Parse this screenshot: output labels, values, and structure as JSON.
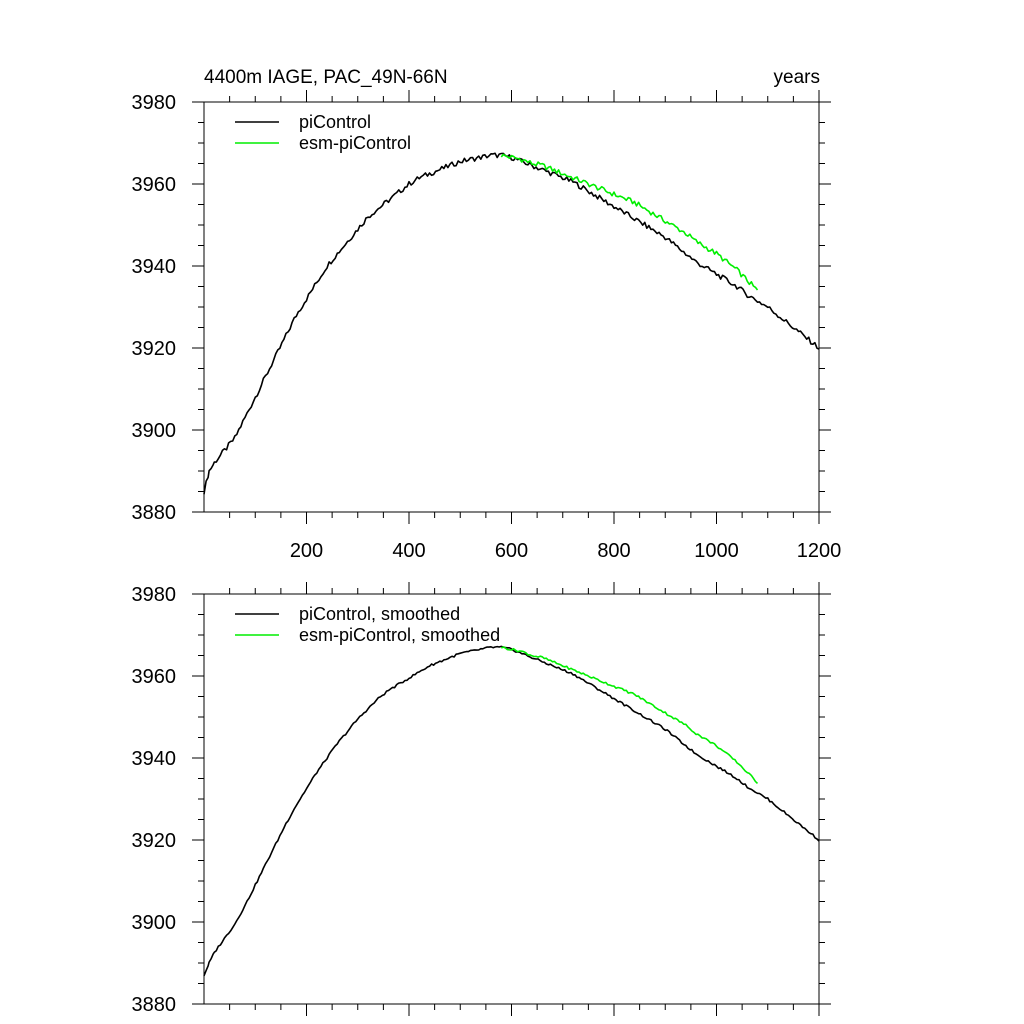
{
  "chart_data": [
    {
      "type": "line",
      "title": "4400m IAGE, PAC_49N-66N",
      "xlabel": "years",
      "ylabel": "",
      "xlim": [
        0,
        1200
      ],
      "ylim": [
        3880,
        3980
      ],
      "xticks": [
        200,
        400,
        600,
        800,
        1000,
        1200
      ],
      "xtick_labels": [
        "200",
        "400",
        "600",
        "800",
        "1000",
        "1200"
      ],
      "yticks": [
        3880,
        3900,
        3920,
        3940,
        3960,
        3980
      ],
      "ytick_labels": [
        "3880",
        "3900",
        "3920",
        "3940",
        "3960",
        "3980"
      ],
      "legend_position": "top-left",
      "series": [
        {
          "name": "piControl",
          "color": "#000000",
          "x": [
            0,
            10,
            20,
            40,
            60,
            80,
            100,
            120,
            140,
            160,
            180,
            200,
            220,
            240,
            260,
            280,
            300,
            320,
            340,
            360,
            380,
            400,
            420,
            440,
            460,
            480,
            500,
            520,
            540,
            560,
            580,
            600,
            620,
            640,
            660,
            680,
            700,
            720,
            740,
            760,
            780,
            800,
            820,
            840,
            860,
            880,
            900,
            920,
            940,
            960,
            980,
            1000,
            1020,
            1040,
            1060,
            1080,
            1100,
            1120,
            1140,
            1160,
            1180,
            1200
          ],
          "y": [
            3885,
            3890,
            3892,
            3895,
            3898,
            3903,
            3908,
            3913,
            3918,
            3923,
            3928,
            3932,
            3936,
            3940,
            3943,
            3946,
            3949,
            3952,
            3954,
            3956,
            3958,
            3960,
            3961.5,
            3962.5,
            3963.5,
            3964.5,
            3965.5,
            3966,
            3966.5,
            3967,
            3967,
            3966.5,
            3965.5,
            3964.5,
            3963.5,
            3962.5,
            3961.5,
            3960.5,
            3959,
            3957.5,
            3956,
            3954.5,
            3953,
            3951.5,
            3950,
            3948.5,
            3947,
            3945,
            3943,
            3941,
            3939.5,
            3938,
            3936.5,
            3935,
            3933,
            3931.5,
            3930,
            3928,
            3926,
            3924,
            3922,
            3920
          ]
        },
        {
          "name": "esm-piControl",
          "color": "#00ee00",
          "x": [
            580,
            600,
            620,
            640,
            660,
            680,
            700,
            720,
            740,
            760,
            780,
            800,
            820,
            840,
            860,
            880,
            900,
            920,
            940,
            960,
            980,
            1000,
            1020,
            1040,
            1060,
            1080
          ],
          "y": [
            3967,
            3966.5,
            3966,
            3965,
            3964.5,
            3963.5,
            3962.5,
            3961.5,
            3960.5,
            3959.5,
            3958.5,
            3957.5,
            3956.5,
            3955.5,
            3954,
            3952.5,
            3951,
            3949.5,
            3948,
            3946,
            3944.5,
            3943,
            3941,
            3939,
            3936.5,
            3934
          ]
        }
      ]
    },
    {
      "type": "line",
      "title": "",
      "xlabel": "",
      "ylabel": "",
      "xlim": [
        0,
        1200
      ],
      "ylim": [
        3880,
        3980
      ],
      "xticks": [
        200,
        400,
        600,
        800,
        1000,
        1200
      ],
      "xtick_labels": [],
      "yticks": [
        3880,
        3900,
        3920,
        3940,
        3960,
        3980
      ],
      "ytick_labels": [
        "3880",
        "3900",
        "3920",
        "3940",
        "3960",
        "3980"
      ],
      "legend_position": "top-left",
      "series": [
        {
          "name": "piControl, smoothed",
          "color": "#000000",
          "x": [
            0,
            10,
            20,
            40,
            60,
            80,
            100,
            120,
            140,
            160,
            180,
            200,
            220,
            240,
            260,
            280,
            300,
            320,
            340,
            360,
            380,
            400,
            420,
            440,
            460,
            480,
            500,
            520,
            540,
            560,
            580,
            600,
            620,
            640,
            660,
            680,
            700,
            720,
            740,
            760,
            780,
            800,
            820,
            840,
            860,
            880,
            900,
            920,
            940,
            960,
            980,
            1000,
            1020,
            1040,
            1060,
            1080,
            1100,
            1120,
            1140,
            1160,
            1180,
            1200
          ],
          "y": [
            3887,
            3890,
            3892.5,
            3896,
            3899.5,
            3904,
            3909,
            3914,
            3919,
            3924,
            3928.5,
            3932.5,
            3936.5,
            3940,
            3943.5,
            3946.5,
            3949.5,
            3952,
            3954.5,
            3956.5,
            3958,
            3959.5,
            3961,
            3962.5,
            3963.5,
            3964.5,
            3965.5,
            3966,
            3966.5,
            3967,
            3967,
            3966.5,
            3965.5,
            3964.5,
            3963.5,
            3962.5,
            3961.5,
            3960.5,
            3959,
            3957.5,
            3956,
            3954.5,
            3953,
            3951.5,
            3950,
            3948.5,
            3947,
            3945,
            3943,
            3941,
            3939.5,
            3938,
            3936.5,
            3935,
            3933,
            3931.5,
            3930,
            3928,
            3926,
            3924,
            3922,
            3920
          ]
        },
        {
          "name": "esm-piControl, smoothed",
          "color": "#00ee00",
          "x": [
            580,
            600,
            620,
            640,
            660,
            680,
            700,
            720,
            740,
            760,
            780,
            800,
            820,
            840,
            860,
            880,
            900,
            920,
            940,
            960,
            980,
            1000,
            1020,
            1040,
            1060,
            1080
          ],
          "y": [
            3967,
            3966.5,
            3966,
            3965,
            3964.5,
            3963.5,
            3962.5,
            3961.5,
            3960.5,
            3959.5,
            3958.5,
            3957.5,
            3956.5,
            3955.5,
            3954,
            3952.5,
            3951,
            3949.5,
            3948,
            3946,
            3944.5,
            3943,
            3941,
            3939,
            3936.5,
            3934
          ]
        }
      ]
    }
  ]
}
